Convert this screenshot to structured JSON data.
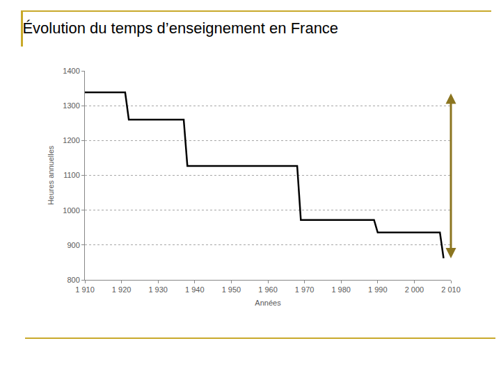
{
  "chart_data": {
    "type": "line",
    "title": "Évolution du temps d’enseignement en France",
    "x_label": "Années",
    "y_label": "Heures annuelles",
    "x": [
      1910,
      1921,
      1922,
      1937,
      1938,
      1968,
      1969,
      1989,
      1990,
      2007,
      2008
    ],
    "values": [
      1338,
      1338,
      1260,
      1260,
      1127,
      1127,
      972,
      972,
      936,
      936,
      862
    ],
    "color": "#000000",
    "xlim": [
      1910,
      2010
    ],
    "xticks": [
      {
        "value": 1910,
        "label": "1 910"
      },
      {
        "value": 1920,
        "label": "1 920"
      },
      {
        "value": 1930,
        "label": "1 930"
      },
      {
        "value": 1940,
        "label": "1 940"
      },
      {
        "value": 1950,
        "label": "1 950"
      },
      {
        "value": 1960,
        "label": "1 960"
      },
      {
        "value": 1970,
        "label": "1 970"
      },
      {
        "value": 1980,
        "label": "1 980"
      },
      {
        "value": 1990,
        "label": "1 990"
      },
      {
        "value": 2000,
        "label": "2 000"
      },
      {
        "value": 2010,
        "label": "2 010"
      }
    ],
    "ylim": [
      800,
      1400
    ],
    "yticks": [
      800,
      900,
      1000,
      1100,
      1200,
      1300,
      1400
    ],
    "grid": true
  }
}
